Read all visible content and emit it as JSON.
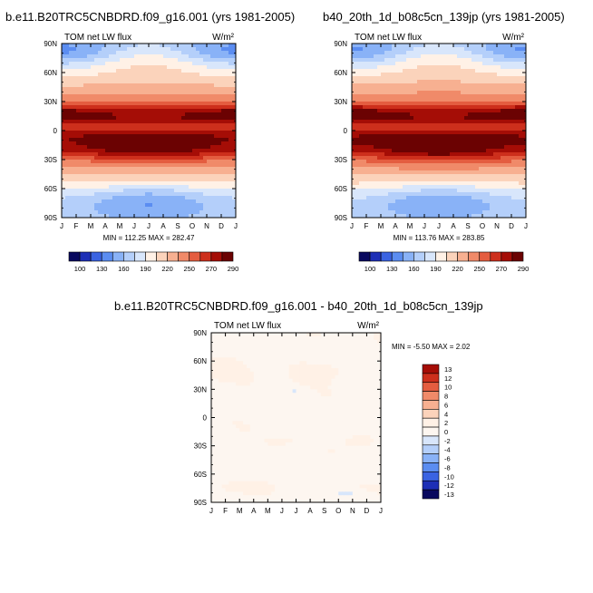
{
  "chart_data": [
    {
      "type": "heatmap",
      "title": "b.e11.B20TRC5CNBDRD.f09_g16.001 (yrs 1981-2005)",
      "left_label": "TOM net LW flux",
      "units": "W/m²",
      "x_ticks": [
        "J",
        "F",
        "M",
        "A",
        "M",
        "J",
        "J",
        "A",
        "S",
        "O",
        "N",
        "D",
        "J"
      ],
      "y_ticks": [
        "90N",
        "60N",
        "30N",
        "0",
        "30S",
        "60S",
        "90S"
      ],
      "stats": "MIN = 112.25 MAX = 282.47",
      "min": 112.25,
      "max": 282.47,
      "field": "control"
    },
    {
      "type": "heatmap",
      "title": "b40_20th_1d_b08c5cn_139jp (yrs 1981-2005)",
      "left_label": "TOM net LW flux",
      "units": "W/m²",
      "x_ticks": [
        "J",
        "F",
        "M",
        "A",
        "M",
        "J",
        "J",
        "A",
        "S",
        "O",
        "N",
        "D",
        "J"
      ],
      "y_ticks": [
        "90N",
        "60N",
        "30N",
        "0",
        "30S",
        "60S",
        "90S"
      ],
      "stats": "MIN = 113.76 MAX = 283.85",
      "min": 113.76,
      "max": 283.85,
      "field": "control"
    },
    {
      "type": "heatmap",
      "title": "b.e11.B20TRC5CNBDRD.f09_g16.001 - b40_20th_1d_b08c5cn_139jp",
      "left_label": "TOM net LW flux",
      "units": "W/m²",
      "x_ticks": [
        "J",
        "F",
        "M",
        "A",
        "M",
        "J",
        "J",
        "A",
        "S",
        "O",
        "N",
        "D",
        "J"
      ],
      "y_ticks": [
        "90N",
        "60N",
        "30N",
        "0",
        "30S",
        "60S",
        "90S"
      ],
      "stats": "MIN =  -5.50 MAX =   2.02",
      "min": -5.5,
      "max": 2.02,
      "field": "difference"
    }
  ],
  "colorbar_main": {
    "labels": [
      "100",
      "130",
      "160",
      "190",
      "220",
      "250",
      "270",
      "290"
    ],
    "colors": [
      "#08085e",
      "#1d2fb6",
      "#3a63e2",
      "#5b8df1",
      "#89b2f7",
      "#b4cffa",
      "#d8e6fb",
      "#fff1e6",
      "#fbd3bb",
      "#f7b091",
      "#f08a69",
      "#e45d40",
      "#cd2f1c",
      "#a50d06",
      "#6b0202"
    ]
  },
  "colorbar_diff": {
    "labels": [
      "13",
      "12",
      "10",
      "8",
      "6",
      "4",
      "2",
      "0",
      "-2",
      "-4",
      "-6",
      "-8",
      "-10",
      "-12",
      "-13"
    ],
    "colors": [
      "#a50d06",
      "#cd2f1c",
      "#e45d40",
      "#f08a69",
      "#f7b091",
      "#fbd3bb",
      "#fff1e6",
      "#fdf6f0",
      "#d8e6fb",
      "#b4cffa",
      "#89b2f7",
      "#5b8df1",
      "#3a63e2",
      "#1d2fb6",
      "#08085e"
    ]
  }
}
